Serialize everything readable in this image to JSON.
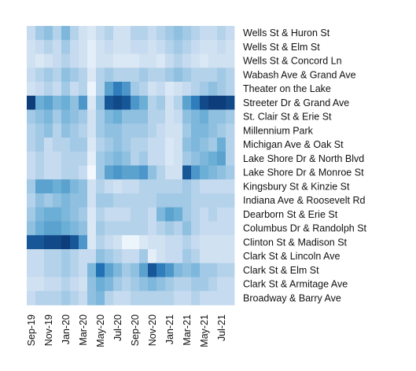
{
  "chart_data": {
    "type": "heatmap",
    "title": "",
    "xlabel": "",
    "ylabel": "",
    "color_scale": {
      "low": "#f7fbff",
      "high": "#08306b"
    },
    "x_ticks": [
      "Sep-19",
      "Nov-19",
      "Jan-20",
      "Mar-20",
      "May-20",
      "Jul-20",
      "Sep-20",
      "Nov-20",
      "Jan-21",
      "Mar-21",
      "May-21",
      "Jul-21"
    ],
    "columns": [
      "Sep-19",
      "Oct-19",
      "Nov-19",
      "Dec-19",
      "Jan-20",
      "Feb-20",
      "Mar-20",
      "Apr-20",
      "May-20",
      "Jun-20",
      "Jul-20",
      "Aug-20",
      "Sep-20",
      "Oct-20",
      "Nov-20",
      "Dec-20",
      "Jan-21",
      "Feb-21",
      "Mar-21",
      "Apr-21",
      "May-21",
      "Jun-21",
      "Jul-21",
      "Aug-21"
    ],
    "rows": [
      "Wells St & Huron St",
      "Wells St & Elm St",
      "Wells St & Concord Ln",
      "Wabash Ave & Grand Ave",
      "Theater on the Lake",
      "Streeter Dr & Grand Ave",
      "St. Clair St & Erie St",
      "Millennium Park",
      "Michigan Ave & Oak St",
      "Lake Shore Dr & North Blvd",
      "Lake Shore Dr & Monroe St",
      "Kingsbury St & Kinzie St",
      "Indiana Ave & Roosevelt Rd",
      "Dearborn St & Erie St",
      "Columbus Dr & Randolph St",
      "Clinton St & Madison St",
      "Clark St & Lincoln Ave",
      "Clark St & Elm St",
      "Clark St & Armitage Ave",
      "Broadway & Barry Ave"
    ],
    "values": [
      [
        0.25,
        0.35,
        0.4,
        0.3,
        0.45,
        0.3,
        0.2,
        0.15,
        0.25,
        0.3,
        0.2,
        0.2,
        0.3,
        0.3,
        0.25,
        0.3,
        0.35,
        0.4,
        0.35,
        0.3,
        0.25,
        0.25,
        0.3,
        0.25
      ],
      [
        0.2,
        0.25,
        0.3,
        0.25,
        0.35,
        0.25,
        0.2,
        0.1,
        0.2,
        0.25,
        0.2,
        0.2,
        0.25,
        0.25,
        0.2,
        0.25,
        0.3,
        0.35,
        0.3,
        0.25,
        0.2,
        0.2,
        0.25,
        0.2
      ],
      [
        0.2,
        0.15,
        0.2,
        0.25,
        0.3,
        0.25,
        0.2,
        0.1,
        0.2,
        0.2,
        0.15,
        0.15,
        0.15,
        0.2,
        0.2,
        0.15,
        0.25,
        0.3,
        0.25,
        0.2,
        0.15,
        0.2,
        0.2,
        0.2
      ],
      [
        0.25,
        0.3,
        0.35,
        0.3,
        0.4,
        0.35,
        0.3,
        0.15,
        0.3,
        0.35,
        0.3,
        0.3,
        0.3,
        0.35,
        0.3,
        0.3,
        0.35,
        0.4,
        0.35,
        0.3,
        0.3,
        0.3,
        0.35,
        0.3
      ],
      [
        0.2,
        0.25,
        0.3,
        0.25,
        0.35,
        0.25,
        0.3,
        0.05,
        0.3,
        0.55,
        0.7,
        0.6,
        0.35,
        0.3,
        0.2,
        0.25,
        0.15,
        0.2,
        0.25,
        0.3,
        0.35,
        0.4,
        0.35,
        0.3
      ],
      [
        0.95,
        0.5,
        0.55,
        0.45,
        0.5,
        0.4,
        0.6,
        0.15,
        0.4,
        0.85,
        0.9,
        0.85,
        0.6,
        0.5,
        0.3,
        0.35,
        0.2,
        0.3,
        0.55,
        0.7,
        0.9,
        0.95,
        0.95,
        0.9
      ],
      [
        0.35,
        0.4,
        0.45,
        0.35,
        0.45,
        0.4,
        0.35,
        0.2,
        0.35,
        0.45,
        0.5,
        0.4,
        0.4,
        0.4,
        0.3,
        0.3,
        0.2,
        0.25,
        0.4,
        0.45,
        0.5,
        0.4,
        0.4,
        0.35
      ],
      [
        0.3,
        0.35,
        0.4,
        0.3,
        0.4,
        0.35,
        0.3,
        0.2,
        0.35,
        0.4,
        0.4,
        0.35,
        0.35,
        0.35,
        0.3,
        0.25,
        0.2,
        0.2,
        0.35,
        0.45,
        0.45,
        0.4,
        0.35,
        0.3
      ],
      [
        0.3,
        0.35,
        0.25,
        0.3,
        0.3,
        0.35,
        0.35,
        0.15,
        0.3,
        0.35,
        0.4,
        0.35,
        0.3,
        0.3,
        0.25,
        0.25,
        0.15,
        0.2,
        0.4,
        0.45,
        0.4,
        0.35,
        0.5,
        0.3
      ],
      [
        0.25,
        0.3,
        0.25,
        0.25,
        0.3,
        0.3,
        0.3,
        0.1,
        0.35,
        0.4,
        0.45,
        0.4,
        0.3,
        0.35,
        0.25,
        0.25,
        0.15,
        0.2,
        0.35,
        0.4,
        0.45,
        0.5,
        0.55,
        0.3
      ],
      [
        0.25,
        0.3,
        0.25,
        0.25,
        0.3,
        0.3,
        0.25,
        0.02,
        0.35,
        0.55,
        0.6,
        0.55,
        0.55,
        0.6,
        0.4,
        0.3,
        0.2,
        0.2,
        0.85,
        0.6,
        0.5,
        0.45,
        0.4,
        0.35
      ],
      [
        0.35,
        0.55,
        0.55,
        0.5,
        0.55,
        0.45,
        0.4,
        0.2,
        0.3,
        0.25,
        0.2,
        0.25,
        0.25,
        0.3,
        0.3,
        0.3,
        0.3,
        0.3,
        0.35,
        0.3,
        0.25,
        0.25,
        0.25,
        0.25
      ],
      [
        0.3,
        0.4,
        0.35,
        0.4,
        0.45,
        0.4,
        0.4,
        0.2,
        0.35,
        0.35,
        0.3,
        0.3,
        0.3,
        0.3,
        0.3,
        0.35,
        0.35,
        0.35,
        0.35,
        0.3,
        0.3,
        0.3,
        0.3,
        0.3
      ],
      [
        0.35,
        0.45,
        0.5,
        0.5,
        0.45,
        0.4,
        0.35,
        0.15,
        0.3,
        0.25,
        0.25,
        0.25,
        0.3,
        0.3,
        0.25,
        0.45,
        0.55,
        0.5,
        0.35,
        0.3,
        0.25,
        0.3,
        0.25,
        0.25
      ],
      [
        0.4,
        0.5,
        0.55,
        0.55,
        0.5,
        0.45,
        0.4,
        0.15,
        0.35,
        0.3,
        0.3,
        0.3,
        0.3,
        0.3,
        0.25,
        0.3,
        0.35,
        0.3,
        0.4,
        0.3,
        0.25,
        0.25,
        0.25,
        0.25
      ],
      [
        0.85,
        0.85,
        0.9,
        0.9,
        0.95,
        0.85,
        0.6,
        0.15,
        0.3,
        0.25,
        0.2,
        0.05,
        0.05,
        0.15,
        0.2,
        0.2,
        0.25,
        0.25,
        0.3,
        0.25,
        0.2,
        0.2,
        0.2,
        0.2
      ],
      [
        0.25,
        0.25,
        0.3,
        0.3,
        0.35,
        0.3,
        0.25,
        0.25,
        0.4,
        0.35,
        0.3,
        0.25,
        0.25,
        0.35,
        0.1,
        0.2,
        0.25,
        0.25,
        0.35,
        0.3,
        0.2,
        0.2,
        0.2,
        0.2
      ],
      [
        0.25,
        0.25,
        0.3,
        0.3,
        0.35,
        0.3,
        0.25,
        0.45,
        0.75,
        0.55,
        0.45,
        0.35,
        0.4,
        0.55,
        0.85,
        0.7,
        0.6,
        0.45,
        0.4,
        0.45,
        0.35,
        0.35,
        0.3,
        0.3
      ],
      [
        0.2,
        0.2,
        0.25,
        0.25,
        0.3,
        0.25,
        0.2,
        0.4,
        0.5,
        0.45,
        0.35,
        0.3,
        0.35,
        0.4,
        0.45,
        0.4,
        0.35,
        0.3,
        0.3,
        0.35,
        0.35,
        0.3,
        0.25,
        0.25
      ],
      [
        0.25,
        0.3,
        0.3,
        0.3,
        0.35,
        0.3,
        0.25,
        0.4,
        0.45,
        0.3,
        0.25,
        0.25,
        0.3,
        0.3,
        0.3,
        0.3,
        0.3,
        0.25,
        0.25,
        0.3,
        0.25,
        0.25,
        0.25,
        0.25
      ]
    ]
  }
}
